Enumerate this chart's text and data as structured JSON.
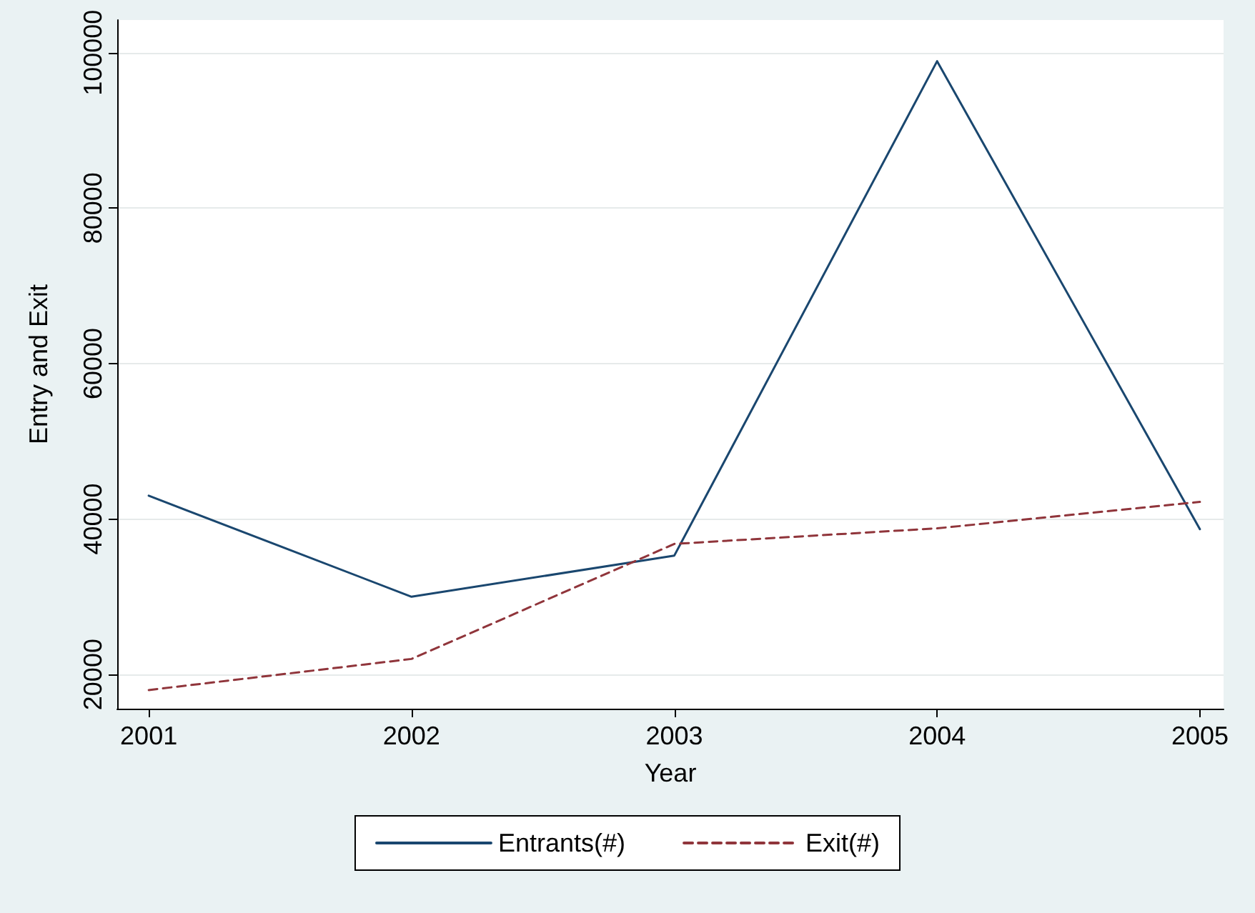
{
  "chart_data": {
    "type": "line",
    "xlabel": "Year",
    "ylabel": "Entry and Exit",
    "x": [
      2001,
      2002,
      2003,
      2004,
      2005
    ],
    "series": [
      {
        "name": "Entrants(#)",
        "color": "#1a476f",
        "values": [
          43000,
          30000,
          35300,
          98900,
          38700
        ],
        "line_style": "solid"
      },
      {
        "name": "Exit(#)",
        "color": "#90353b",
        "values": [
          18000,
          22000,
          36800,
          38800,
          42200
        ],
        "line_style": "dashed"
      }
    ],
    "xlim": [
      2000.88,
      2005.09
    ],
    "xticks": [
      2001,
      2002,
      2003,
      2004,
      2005
    ],
    "ylim": [
      15600,
      104200
    ],
    "yticks": [
      20000,
      40000,
      60000,
      80000,
      100000
    ],
    "grid": "y",
    "legend": "bottom",
    "marker": "none"
  }
}
